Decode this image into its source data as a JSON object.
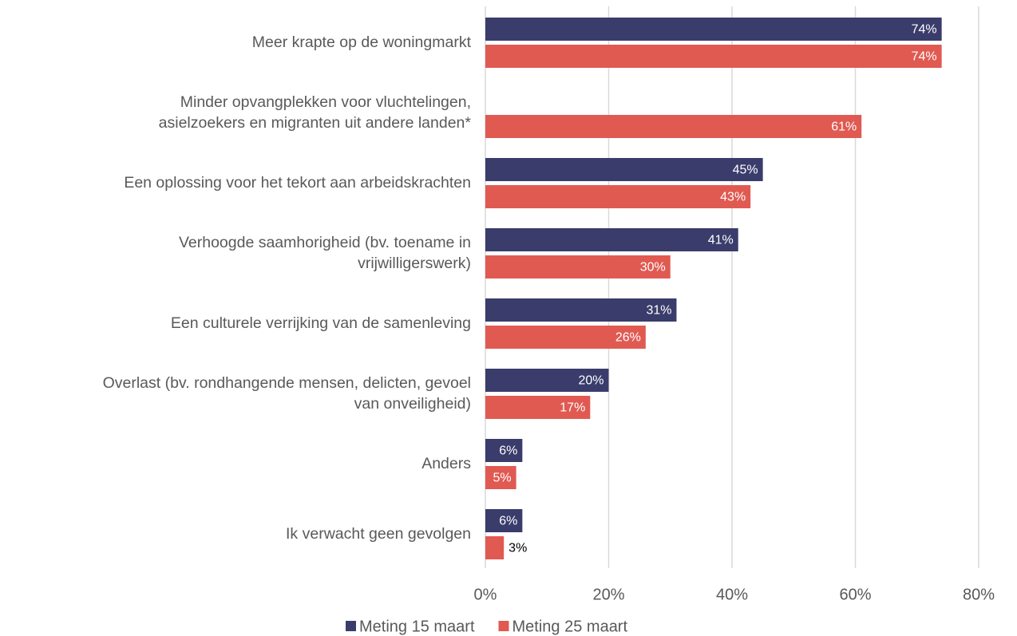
{
  "chart_data": {
    "type": "bar",
    "orientation": "horizontal",
    "categories": [
      "Meer krapte op de woningmarkt",
      "Minder opvangplekken voor vluchtelingen,\nasielzoekers en migranten uit andere landen*",
      "Een oplossing voor het tekort aan arbeidskrachten",
      "Verhoogde saamhorigheid (bv. toename in\nvrijwilligerswerk)",
      "Een culturele verrijking van de samenleving",
      "Overlast (bv. rondhangende mensen, delicten, gevoel\nvan onveiligheid)",
      "Anders",
      "Ik verwacht geen gevolgen"
    ],
    "series": [
      {
        "name": "Meting 15 maart",
        "color": "#3a3c6b",
        "values": [
          74,
          null,
          45,
          41,
          31,
          20,
          6,
          6
        ],
        "value_labels": [
          "74%",
          null,
          "45%",
          "41%",
          "31%",
          "20%",
          "6%",
          "6%"
        ]
      },
      {
        "name": "Meting 25 maart",
        "color": "#e05a52",
        "values": [
          74,
          61,
          43,
          30,
          26,
          17,
          5,
          3
        ],
        "value_labels": [
          "74%",
          "61%",
          "43%",
          "30%",
          "26%",
          "17%",
          "5%",
          "3%"
        ]
      }
    ],
    "xlim": [
      0,
      80
    ],
    "xticks": [
      {
        "value": 0,
        "label": "0%"
      },
      {
        "value": 20,
        "label": "20%"
      },
      {
        "value": 40,
        "label": "40%"
      },
      {
        "value": 60,
        "label": "60%"
      },
      {
        "value": 80,
        "label": "80%"
      }
    ],
    "grid": true,
    "legend": "bottom"
  }
}
